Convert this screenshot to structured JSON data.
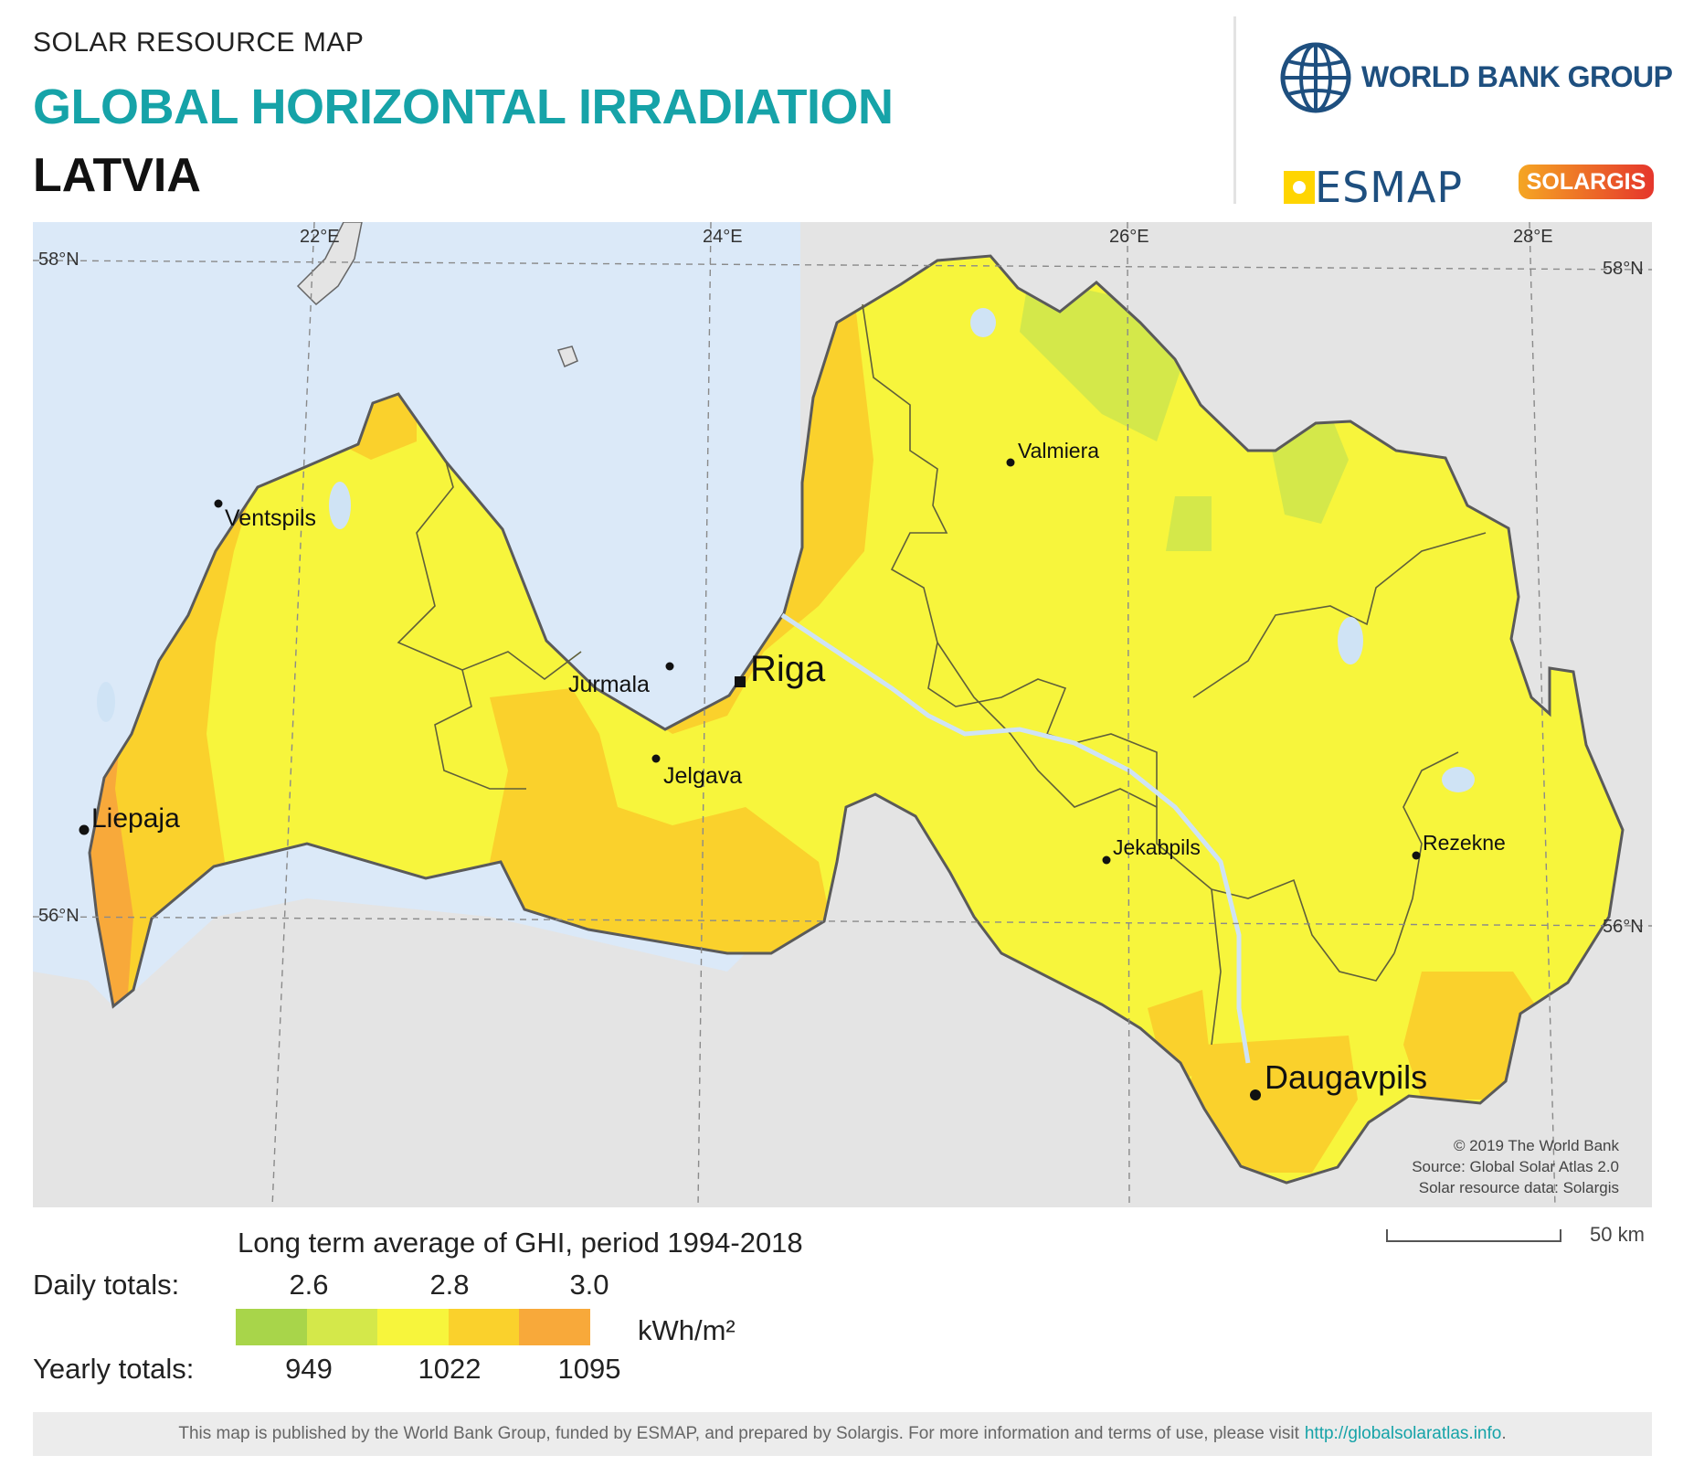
{
  "header": {
    "small_title": "SOLAR RESOURCE MAP",
    "title": "GLOBAL HORIZONTAL IRRADIATION",
    "country": "LATVIA"
  },
  "logos": {
    "world_bank": "WORLD BANK GROUP",
    "esmap": "ESMAP",
    "solargis": "SOLARGIS"
  },
  "map": {
    "grid_labels": {
      "lon_22": "22°E",
      "lon_24": "24°E",
      "lon_26": "26°E",
      "lon_28": "28°E",
      "lat_58_left": "58°N",
      "lat_58_right": "58°N",
      "lat_56_left": "56°N",
      "lat_56_right": "56°N"
    },
    "places": {
      "riga": "Riga",
      "daugavpils": "Daugavpils",
      "liepaja": "Liepaja",
      "ventspils": "Ventspils",
      "jurmala": "Jurmala",
      "jelgava": "Jelgava",
      "valmiera": "Valmiera",
      "jekabpils": "Jekabpils",
      "rezekne": "Rezekne"
    },
    "credits": {
      "line1": "© 2019 The World Bank",
      "line2": "Source: Global Solar Atlas 2.0",
      "line3": "Solar resource data: Solargis"
    },
    "colors": {
      "sea": "#dbe9f8",
      "land_outside": "#e4e4e4",
      "border": "#5a5a5a"
    }
  },
  "legend": {
    "title": "Long term average of GHI, period 1994-2018",
    "daily_label": "Daily totals:",
    "yearly_label": "Yearly totals:",
    "daily_ticks": [
      "2.6",
      "2.8",
      "3.0"
    ],
    "yearly_ticks": [
      "949",
      "1022",
      "1095"
    ],
    "unit": "kWh/m²",
    "colors": [
      "#a8d54a",
      "#d4e84a",
      "#f7f53c",
      "#fad12c",
      "#f8a93a"
    ]
  },
  "scale": {
    "label": "50 km"
  },
  "footer": {
    "text": "This map is published by the World Bank Group, funded by ESMAP, and prepared by Solargis. For more information and terms of use, please visit",
    "link": "http://globalsolaratlas.info",
    "tail": "."
  }
}
